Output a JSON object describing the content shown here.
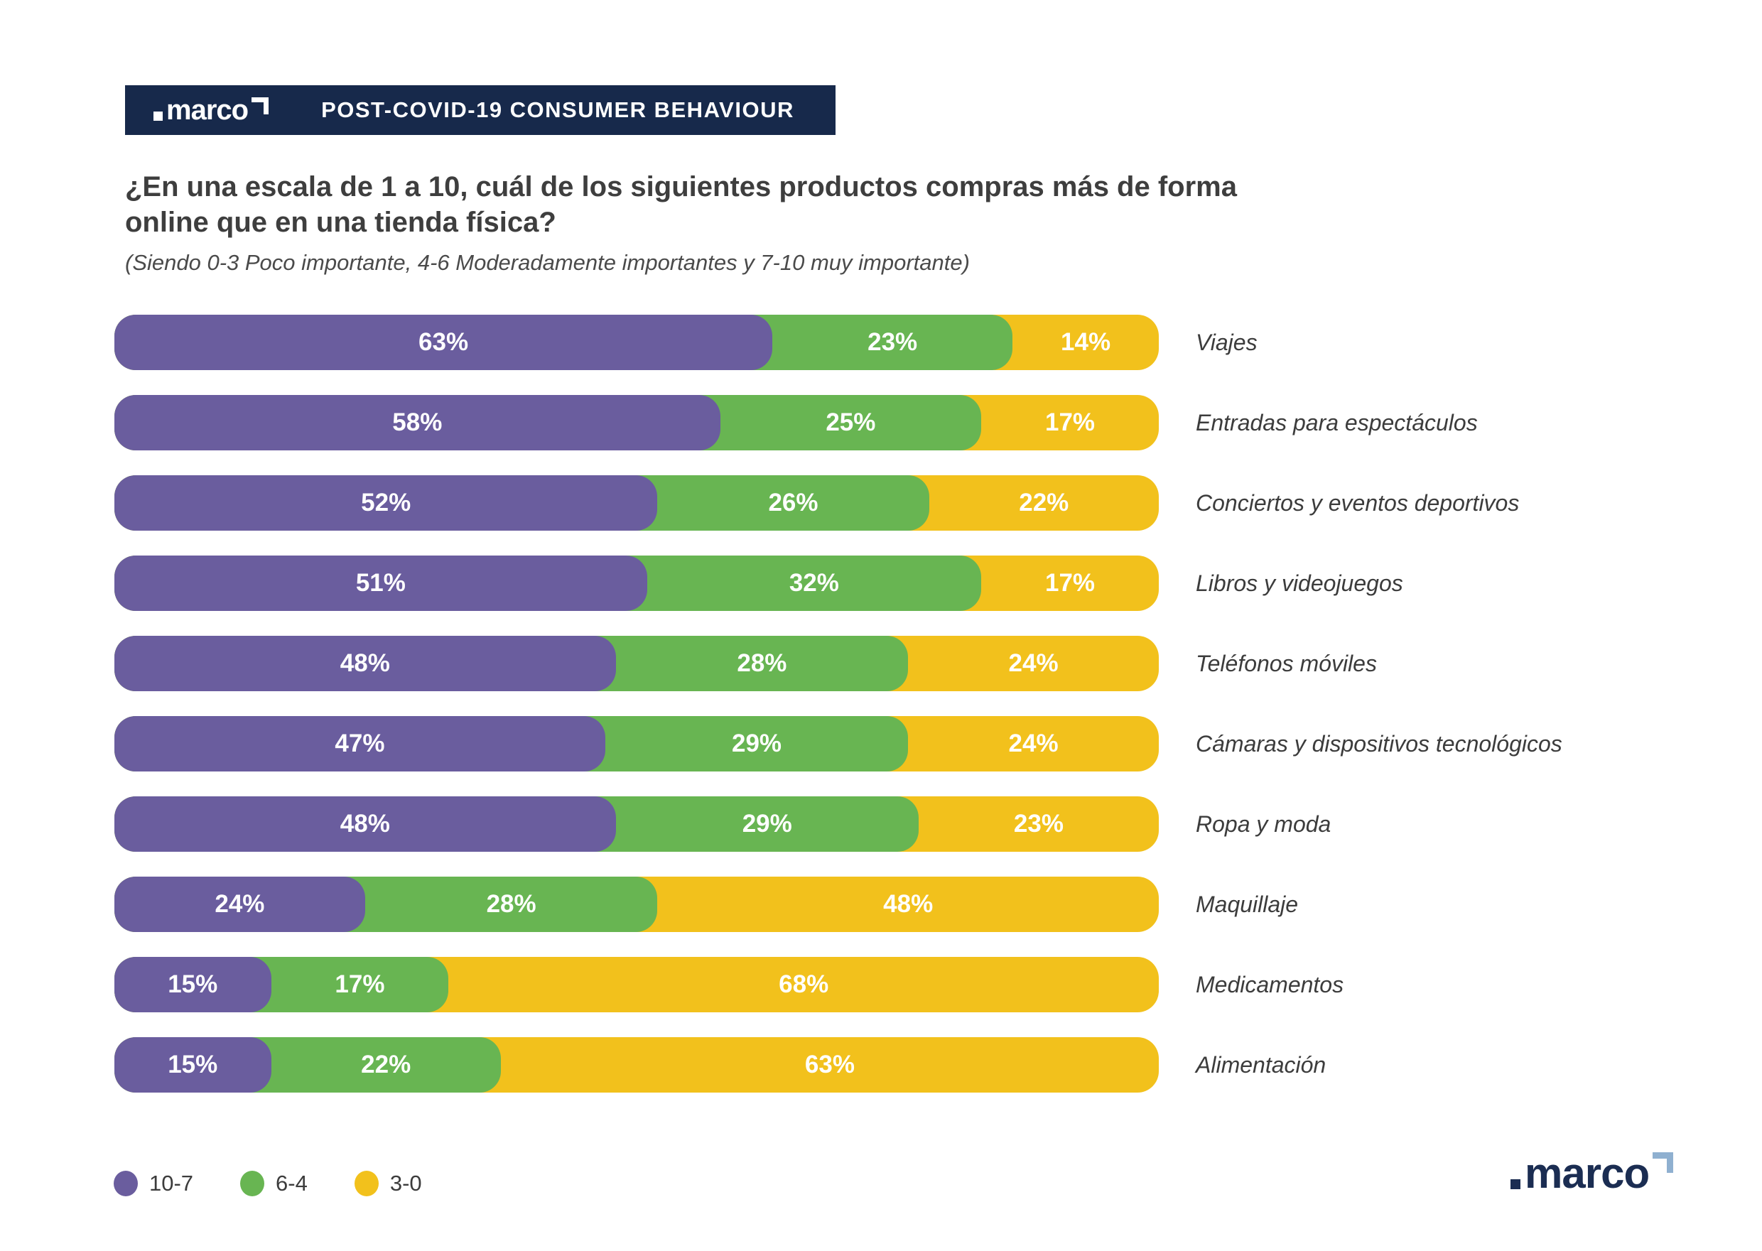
{
  "header": {
    "logo_text": "marco",
    "title": "POST-COVID-19 CONSUMER BEHAVIOUR",
    "background_color": "#17294b"
  },
  "question": {
    "title_line1": "¿En una escala de 1 a 10, cuál de los siguientes productos compras más de forma",
    "title_line2": "online que en una tienda física?",
    "subtitle": "(Siendo 0-3 Poco importante, 4-6 Moderadamente importantes y 7-10 muy importante)"
  },
  "chart_data": {
    "type": "bar",
    "stacked": true,
    "orientation": "horizontal",
    "value_suffix": "%",
    "categories": [
      "Viajes",
      "Entradas para espectáculos",
      "Conciertos y eventos deportivos",
      "Libros y videojuegos",
      "Teléfonos móviles",
      "Cámaras y dispositivos tecnológicos",
      "Ropa y moda",
      "Maquillaje",
      "Medicamentos",
      "Alimentación"
    ],
    "series": [
      {
        "name": "10-7",
        "color": "#6a5d9e",
        "values": [
          63,
          58,
          52,
          51,
          48,
          47,
          48,
          24,
          15,
          15
        ]
      },
      {
        "name": "6-4",
        "color": "#68b552",
        "values": [
          23,
          25,
          26,
          32,
          28,
          29,
          29,
          28,
          17,
          22
        ]
      },
      {
        "name": "3-0",
        "color": "#f2c11c",
        "values": [
          14,
          17,
          22,
          17,
          24,
          24,
          23,
          48,
          68,
          63
        ]
      }
    ],
    "xlim": [
      0,
      100
    ],
    "grid": false,
    "legend_position": "bottom-left"
  },
  "legend": {
    "items": [
      {
        "label": "10-7",
        "color": "#6a5d9e"
      },
      {
        "label": "6-4",
        "color": "#68b552"
      },
      {
        "label": "3-0",
        "color": "#f2c11c"
      }
    ]
  },
  "footer": {
    "logo_text": "marco",
    "logo_color": "#1b2d52",
    "logo_accent_color": "#8fb0d0"
  }
}
